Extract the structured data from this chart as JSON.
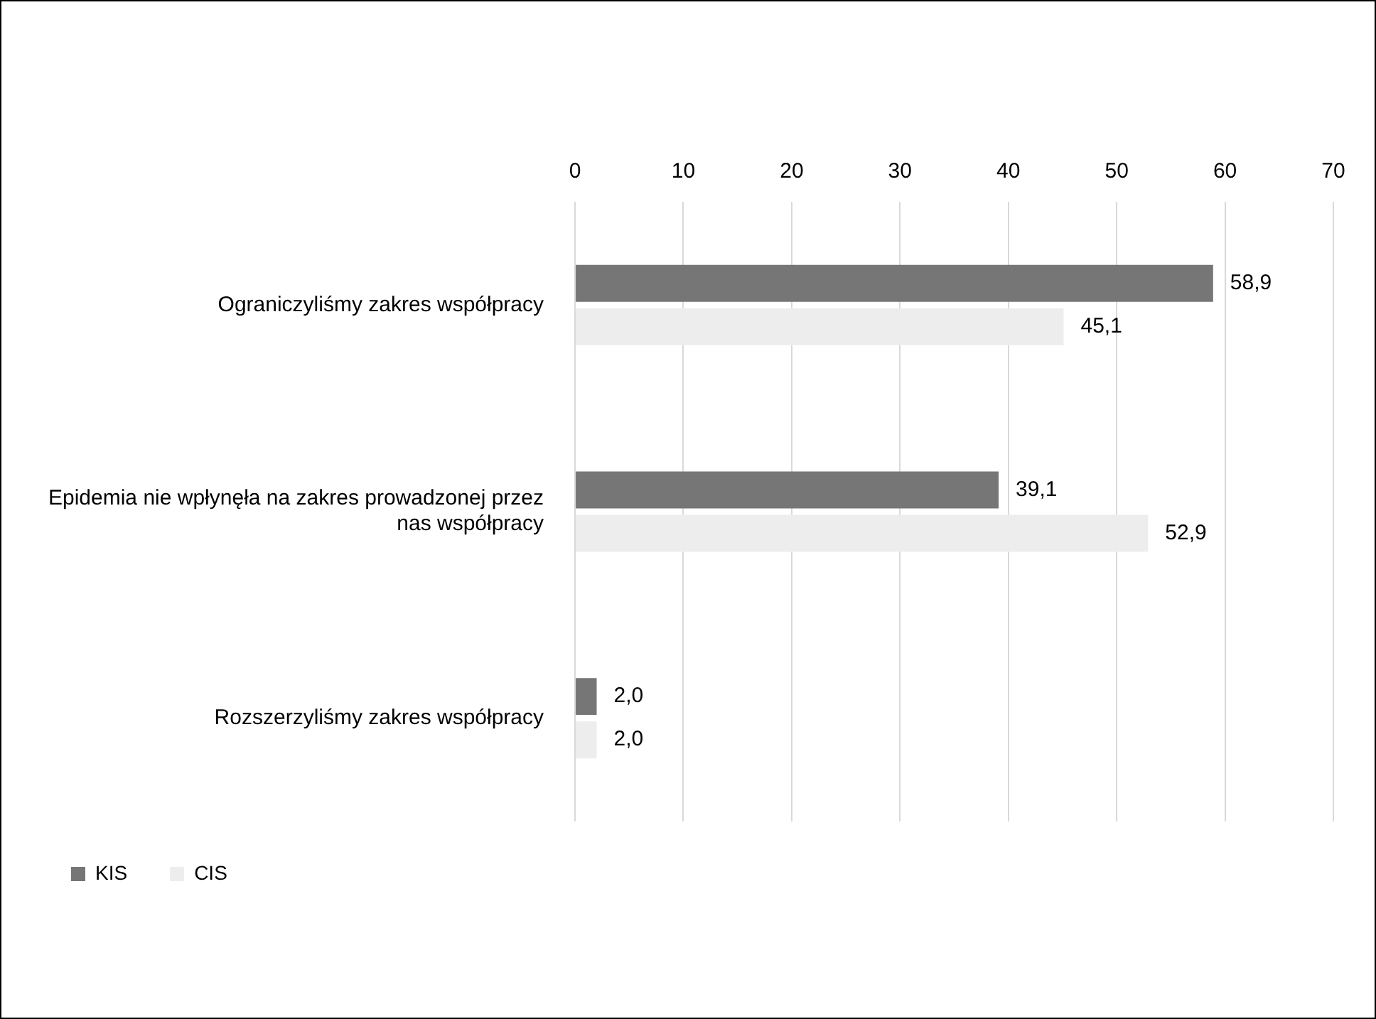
{
  "chart_data": {
    "type": "bar",
    "orientation": "horizontal",
    "categories": [
      "Ograniczyliśmy zakres współpracy",
      "Epidemia nie wpłynęła na zakres prowadzonej przez nas współpracy",
      "Rozszerzyliśmy zakres współpracy"
    ],
    "series": [
      {
        "name": "KIS",
        "color": "#767676",
        "values": [
          58.9,
          39.1,
          2.0
        ],
        "value_labels": [
          "58,9",
          "39,1",
          "2,0"
        ]
      },
      {
        "name": "CIS",
        "color": "#ededed",
        "values": [
          45.1,
          52.9,
          2.0
        ],
        "value_labels": [
          "45,1",
          "52,9",
          "2,0"
        ]
      }
    ],
    "xlim": [
      0,
      70
    ],
    "xticks": [
      0,
      10,
      20,
      30,
      40,
      50,
      60,
      70
    ],
    "grid": "x",
    "legend": "bottom"
  }
}
